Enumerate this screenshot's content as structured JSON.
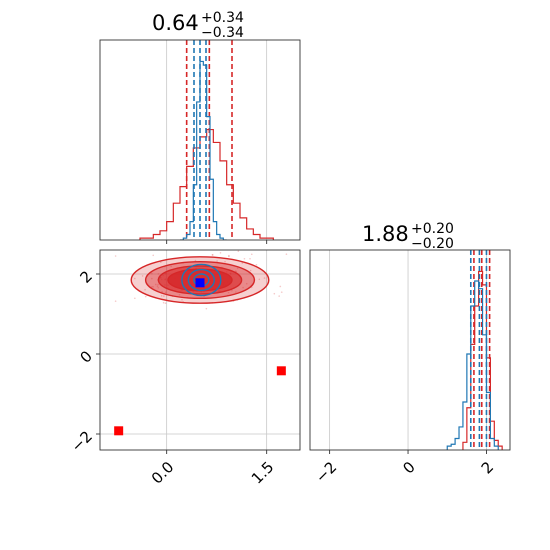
{
  "chart_data": [
    {
      "type": "histogram",
      "panel": "marginal-param1",
      "title": {
        "value": "0.64",
        "plus": "+0.34",
        "minus": "−0.34"
      },
      "xlim": [
        -1.0,
        2.0
      ],
      "grid": true,
      "xticks": [
        0.0,
        1.5
      ],
      "series": [
        {
          "color": "#d62728",
          "bin_edges": [
            -0.4,
            -0.3,
            -0.2,
            -0.1,
            0.0,
            0.1,
            0.2,
            0.3,
            0.4,
            0.5,
            0.6,
            0.7,
            0.8,
            0.9,
            1.0,
            1.1,
            1.2,
            1.3,
            1.4,
            1.5,
            1.6
          ],
          "counts": [
            0.01,
            0.01,
            0.03,
            0.05,
            0.1,
            0.2,
            0.29,
            0.4,
            0.5,
            0.56,
            0.6,
            0.53,
            0.43,
            0.3,
            0.2,
            0.12,
            0.06,
            0.03,
            0.01,
            0.01
          ],
          "quantiles": [
            0.3,
            0.64,
            0.98
          ]
        },
        {
          "color": "#1f77b4",
          "bin_edges": [
            0.2,
            0.25,
            0.3,
            0.35,
            0.4,
            0.45,
            0.5,
            0.55,
            0.6,
            0.65,
            0.7,
            0.75,
            0.8,
            0.85,
            0.9
          ],
          "counts": [
            0.0,
            0.01,
            0.03,
            0.1,
            0.3,
            0.75,
            0.97,
            0.95,
            0.67,
            0.33,
            0.1,
            0.03,
            0.01,
            0.0
          ],
          "quantiles": [
            0.41,
            0.5,
            0.59
          ]
        }
      ]
    },
    {
      "type": "contour",
      "panel": "joint",
      "xlim": [
        -1.0,
        2.0
      ],
      "ylim": [
        -2.4,
        2.6
      ],
      "grid": true,
      "xticks": [
        0.0,
        1.5
      ],
      "yticks": [
        -2,
        0,
        2
      ],
      "series": [
        {
          "color": "#d62728",
          "center": [
            0.5,
            1.85
          ],
          "sigma": [
            0.48,
            0.27
          ],
          "levels": [
            1.0,
            1.3,
            1.7,
            2.15
          ]
        },
        {
          "color": "#1f77b4",
          "center": [
            0.52,
            1.85
          ],
          "sigma": [
            0.15,
            0.2
          ],
          "levels": [
            0.75,
            1.3,
            1.95
          ]
        }
      ],
      "markers": [
        {
          "color": "#0000ff",
          "x": 0.5,
          "y": 1.78
        },
        {
          "color": "#ff0000",
          "x": 1.72,
          "y": -0.42
        },
        {
          "color": "#ff0000",
          "x": -0.72,
          "y": -1.92
        }
      ],
      "scatter_color": "#d62728"
    },
    {
      "type": "histogram",
      "panel": "marginal-param2",
      "title": {
        "value": "1.88",
        "plus": "+0.20",
        "minus": "−0.20"
      },
      "xlim": [
        -2.5,
        2.6
      ],
      "grid": true,
      "xticks": [
        -2,
        0,
        2
      ],
      "series": [
        {
          "color": "#d62728",
          "bin_edges": [
            1.4,
            1.5,
            1.6,
            1.7,
            1.8,
            1.9,
            2.0,
            2.1,
            2.2,
            2.3,
            2.4
          ],
          "counts": [
            0.04,
            0.22,
            0.55,
            0.75,
            0.93,
            0.86,
            0.48,
            0.15,
            0.05,
            0.02
          ],
          "quantiles": [
            1.68,
            1.88,
            2.08
          ]
        },
        {
          "color": "#1f77b4",
          "bin_edges": [
            1.0,
            1.1,
            1.2,
            1.3,
            1.4,
            1.5,
            1.6,
            1.7,
            1.8,
            1.9,
            2.0,
            2.1,
            2.2,
            2.3
          ],
          "counts": [
            0.02,
            0.03,
            0.06,
            0.12,
            0.25,
            0.5,
            0.75,
            0.88,
            0.84,
            0.6,
            0.3,
            0.06,
            0.02
          ],
          "quantiles": [
            1.6,
            1.82,
            2.0
          ]
        }
      ]
    }
  ]
}
